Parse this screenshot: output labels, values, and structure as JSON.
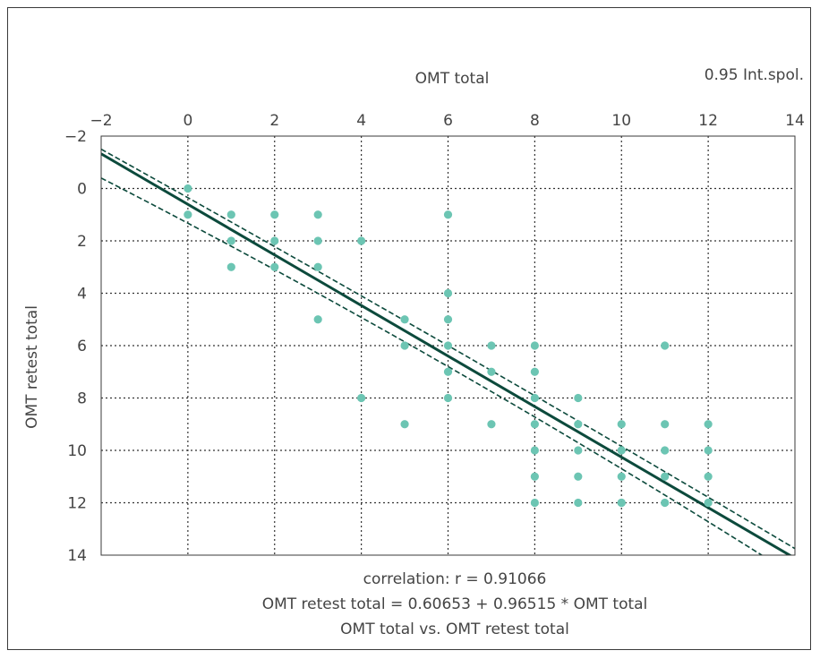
{
  "chart_data": {
    "type": "scatter",
    "title": "OMT total vs. OMT retest total",
    "xlabel": "OMT total",
    "ylabel": "OMT retest total",
    "legend_text": "0.95 Int.spol.",
    "xlim": [
      -2,
      14
    ],
    "ylim": [
      -2,
      14
    ],
    "y_axis_inverted": true,
    "x_axis_position": "top",
    "x_ticks": [
      "−2",
      "0",
      "2",
      "4",
      "6",
      "8",
      "10",
      "12",
      "14"
    ],
    "y_ticks": [
      "−2",
      "0",
      "2",
      "4",
      "6",
      "8",
      "10",
      "12",
      "14"
    ],
    "grid": true,
    "annotations": [
      "correlation: r = 0.91066",
      "OMT retest total = 0.60653 + 0.96515 * OMT total"
    ],
    "regression": {
      "intercept": 0.60653,
      "slope": 0.96515
    },
    "confidence_band": {
      "upper": [
        [
          -2,
          -1.5
        ],
        [
          6,
          6.0
        ],
        [
          14,
          13.75
        ]
      ],
      "lower": [
        [
          -2,
          -0.4
        ],
        [
          6,
          6.8
        ],
        [
          14,
          14.8
        ]
      ]
    },
    "series": [
      {
        "x": [
          0,
          0,
          1,
          1,
          1,
          2,
          2,
          2,
          3,
          3,
          3,
          3,
          4,
          4,
          5,
          5,
          5,
          6,
          6,
          6,
          6,
          6,
          6,
          7,
          7,
          7,
          8,
          8,
          8,
          8,
          8,
          8,
          8,
          9,
          9,
          9,
          9,
          9,
          10,
          10,
          10,
          10,
          10,
          11,
          11,
          11,
          11,
          11,
          12,
          12,
          12,
          12
        ],
        "y": [
          0,
          1,
          1,
          2,
          3,
          1,
          2,
          3,
          1,
          2,
          3,
          5,
          2,
          8,
          5,
          6,
          9,
          1,
          4,
          5,
          6,
          7,
          8,
          6,
          7,
          9,
          6,
          7,
          8,
          9,
          10,
          11,
          12,
          8,
          9,
          10,
          11,
          12,
          9,
          10,
          11,
          12,
          12,
          6,
          9,
          10,
          11,
          12,
          9,
          10,
          11,
          12
        ]
      }
    ],
    "colors": {
      "points": "#6cc5b3",
      "line": "#0c4a3c",
      "grid": "#333333",
      "axes": "#3a3a3a",
      "text": "#444444"
    }
  }
}
